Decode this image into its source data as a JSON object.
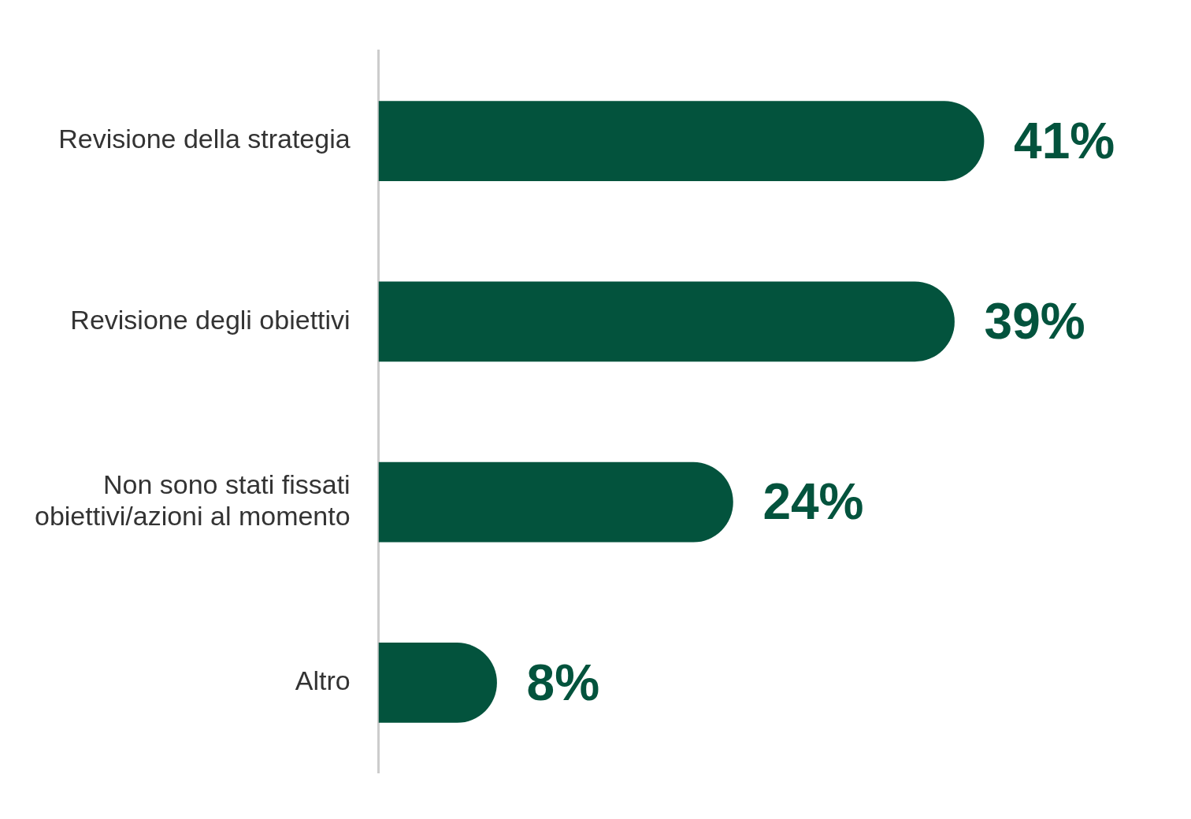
{
  "chart_data": {
    "type": "bar",
    "orientation": "horizontal",
    "categories": [
      "Revisione della strategia",
      "Revisione degli obiettivi",
      "Non sono stati fissati obiettivi/azioni al momento",
      "Altro"
    ],
    "values": [
      41,
      39,
      24,
      8
    ],
    "value_labels": [
      "41%",
      "39%",
      "24%",
      "8%"
    ],
    "color": "#03533d",
    "grid": false,
    "legend": false,
    "tick_labels": "y"
  }
}
